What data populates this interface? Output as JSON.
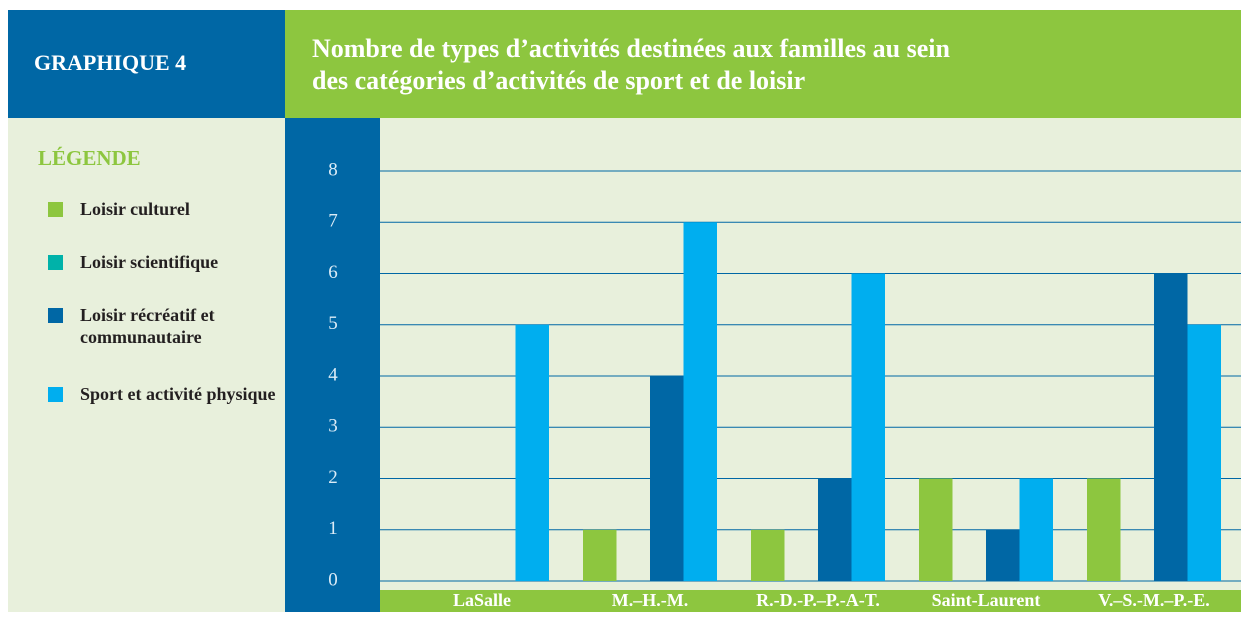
{
  "chart_data": {
    "type": "bar",
    "label": "GRAPHIQUE 4",
    "title": [
      "Nombre de types d’activités destinées aux familles au sein",
      "des catégories d’activités de sport et de loisir"
    ],
    "legend_title": "LÉGENDE",
    "categories": [
      "LaSalle",
      "M.–H.-M.",
      "R.-D.-P.–P.-A-T.",
      "Saint-Laurent",
      "V.–S.-M.–P.-E."
    ],
    "series": [
      {
        "name": "Loisir culturel",
        "color": "#8dc63f",
        "values": [
          0,
          1,
          1,
          2,
          2
        ]
      },
      {
        "name": "Loisir scientifique",
        "color": "#00b2a9",
        "values": [
          0,
          0,
          0,
          0,
          0
        ]
      },
      {
        "name": "Loisir récréatif et communautaire",
        "color": "#0067a5",
        "values": [
          0,
          4,
          2,
          1,
          6
        ]
      },
      {
        "name": "Sport et activité physique",
        "color": "#00aeef",
        "values": [
          5,
          7,
          6,
          2,
          5
        ]
      }
    ],
    "ylim": [
      0,
      8
    ],
    "yticks": [
      0,
      1,
      2,
      3,
      4,
      5,
      6,
      7,
      8
    ],
    "grid": true,
    "legend_position": "left"
  }
}
